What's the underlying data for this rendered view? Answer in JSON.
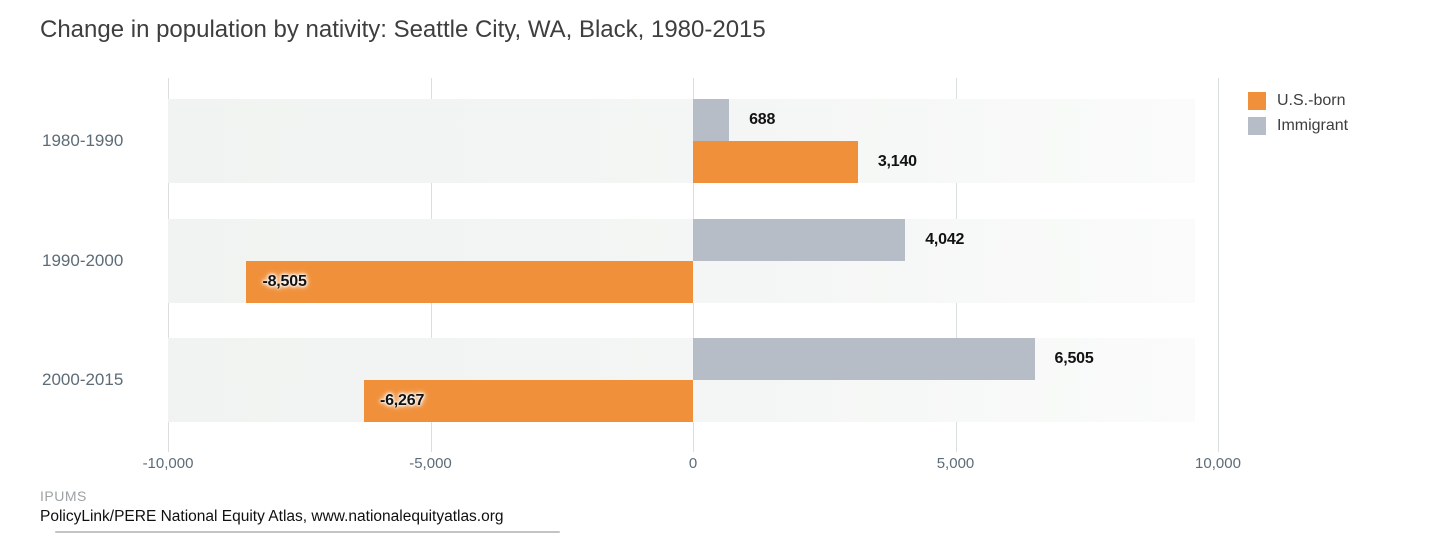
{
  "chart_data": {
    "type": "bar",
    "orientation": "horizontal",
    "title": "Change in population by nativity: Seattle City, WA, Black, 1980-2015",
    "categories": [
      "1980-1990",
      "1990-2000",
      "2000-2015"
    ],
    "series": [
      {
        "name": "U.S.-born",
        "color": "#f0903a",
        "values": [
          3140,
          -8505,
          -6267
        ],
        "labels": [
          "3,140",
          "-8,505",
          "-6,267"
        ]
      },
      {
        "name": "Immigrant",
        "color": "#b7bdc6",
        "values": [
          688,
          4042,
          6505
        ],
        "labels": [
          "688",
          "4,042",
          "6,505"
        ]
      }
    ],
    "row_order": [
      1,
      0
    ],
    "xlim": [
      -10000,
      10000
    ],
    "x_ticks": [
      -10000,
      -5000,
      0,
      5000,
      10000
    ],
    "x_tick_labels": [
      "-10,000",
      "-5,000",
      "0",
      "5,000",
      "10,000"
    ],
    "legend_position": "top-right",
    "grid": "vertical"
  },
  "colors": {
    "us_born": "#f0903a",
    "immigrant": "#b7bdc6",
    "band": "#f2f4f3",
    "gridline": "#dbdfdf",
    "title_text": "#3e3e3e",
    "axis_text": "#5d6c77",
    "value_text": "#121212"
  },
  "footer": {
    "line1": "IPUMS",
    "line2": "PolicyLink/PERE National Equity Atlas, www.nationalequityatlas.org"
  }
}
